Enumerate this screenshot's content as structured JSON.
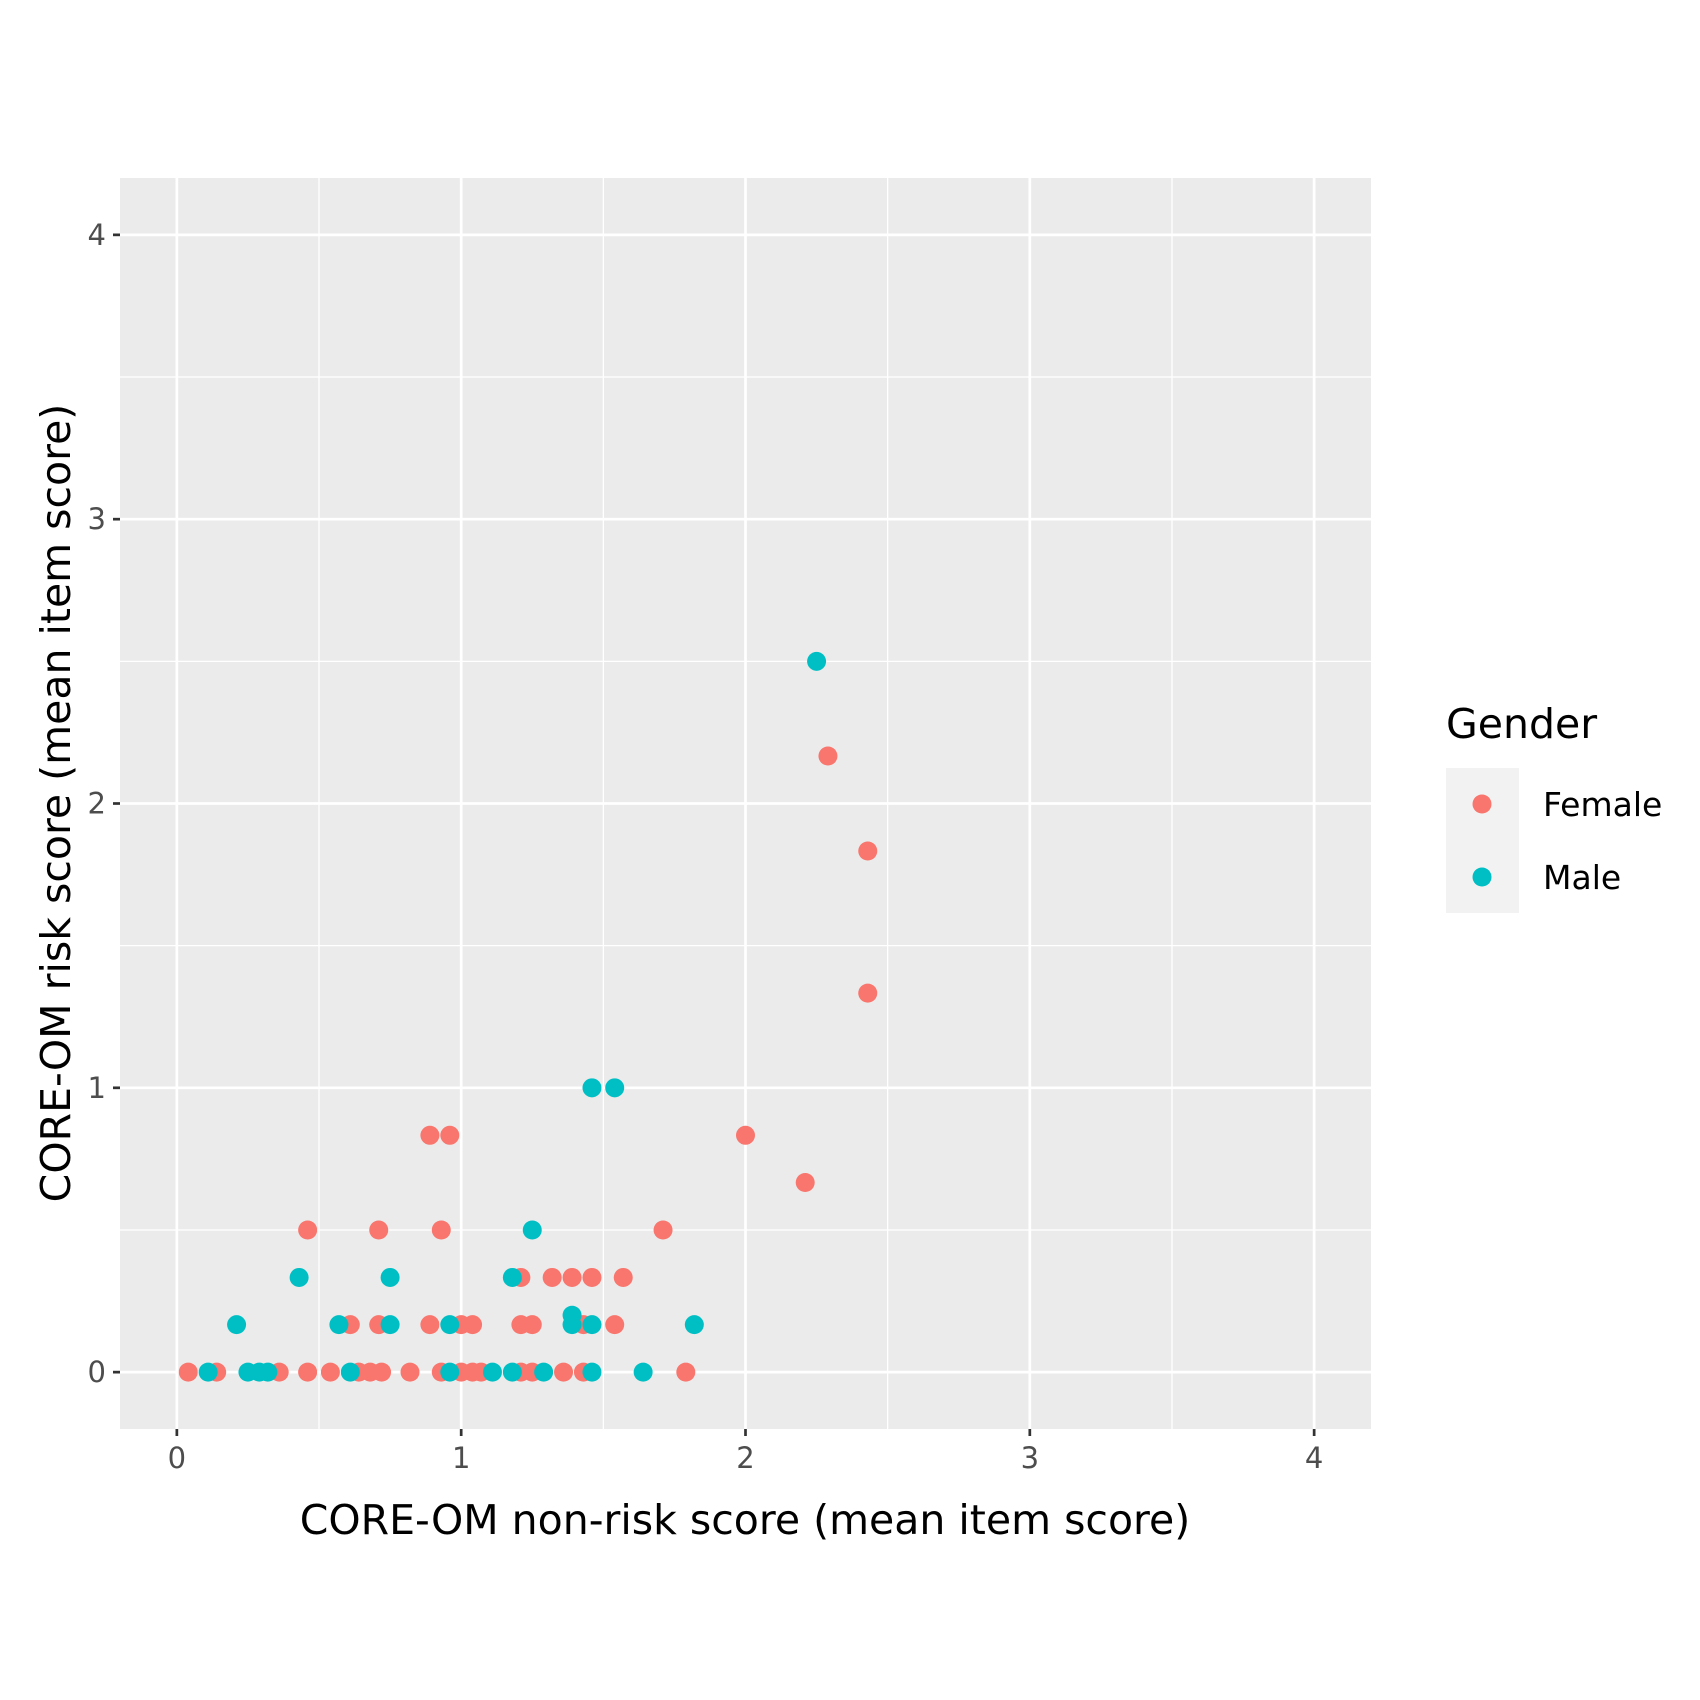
{
  "chart_data": {
    "type": "scatter",
    "xlabel": "CORE-OM non-risk score (mean item score)",
    "ylabel": "CORE-OM risk score (mean item score)",
    "xlim": [
      -0.2,
      4.2
    ],
    "ylim": [
      -0.2,
      4.2
    ],
    "x_ticks": [
      "0",
      "1",
      "2",
      "3",
      "4"
    ],
    "y_ticks": [
      "0",
      "1",
      "2",
      "3",
      "4"
    ],
    "grid": true,
    "legend": {
      "title": "Gender",
      "position": "right"
    },
    "series": [
      {
        "name": "Female",
        "color": "#F8766D",
        "points": [
          [
            0.04,
            0
          ],
          [
            0.14,
            0
          ],
          [
            0.36,
            0
          ],
          [
            0.46,
            0
          ],
          [
            0.54,
            0
          ],
          [
            0.64,
            0
          ],
          [
            0.68,
            0
          ],
          [
            0.72,
            0
          ],
          [
            0.82,
            0
          ],
          [
            0.93,
            0
          ],
          [
            1.0,
            0
          ],
          [
            1.04,
            0
          ],
          [
            1.07,
            0
          ],
          [
            1.21,
            0
          ],
          [
            1.25,
            0
          ],
          [
            1.36,
            0
          ],
          [
            1.43,
            0
          ],
          [
            1.79,
            0
          ],
          [
            0.61,
            0.167
          ],
          [
            0.71,
            0.167
          ],
          [
            0.89,
            0.167
          ],
          [
            1.0,
            0.167
          ],
          [
            1.04,
            0.167
          ],
          [
            1.21,
            0.167
          ],
          [
            1.25,
            0.167
          ],
          [
            1.43,
            0.167
          ],
          [
            1.54,
            0.167
          ],
          [
            1.21,
            0.333
          ],
          [
            1.32,
            0.333
          ],
          [
            1.39,
            0.333
          ],
          [
            1.46,
            0.333
          ],
          [
            1.57,
            0.333
          ],
          [
            0.46,
            0.5
          ],
          [
            0.71,
            0.5
          ],
          [
            0.93,
            0.5
          ],
          [
            1.71,
            0.5
          ],
          [
            0.89,
            0.833
          ],
          [
            0.96,
            0.833
          ],
          [
            2.0,
            0.833
          ],
          [
            2.21,
            0.667
          ],
          [
            2.43,
            1.333
          ],
          [
            2.43,
            1.833
          ],
          [
            2.29,
            2.167
          ]
        ]
      },
      {
        "name": "Male",
        "color": "#00BFC4",
        "points": [
          [
            0.11,
            0
          ],
          [
            0.25,
            0
          ],
          [
            0.29,
            0
          ],
          [
            0.32,
            0
          ],
          [
            0.61,
            0
          ],
          [
            0.96,
            0
          ],
          [
            1.11,
            0
          ],
          [
            1.18,
            0
          ],
          [
            1.29,
            0
          ],
          [
            1.46,
            0
          ],
          [
            1.64,
            0
          ],
          [
            0.21,
            0.167
          ],
          [
            0.57,
            0.167
          ],
          [
            0.75,
            0.167
          ],
          [
            0.96,
            0.167
          ],
          [
            1.39,
            0.167
          ],
          [
            1.46,
            0.167
          ],
          [
            1.82,
            0.167
          ],
          [
            1.39,
            0.2
          ],
          [
            0.43,
            0.333
          ],
          [
            0.75,
            0.333
          ],
          [
            1.18,
            0.333
          ],
          [
            1.25,
            0.5
          ],
          [
            1.46,
            1.0
          ],
          [
            1.54,
            1.0
          ],
          [
            2.25,
            2.5
          ]
        ]
      }
    ]
  }
}
